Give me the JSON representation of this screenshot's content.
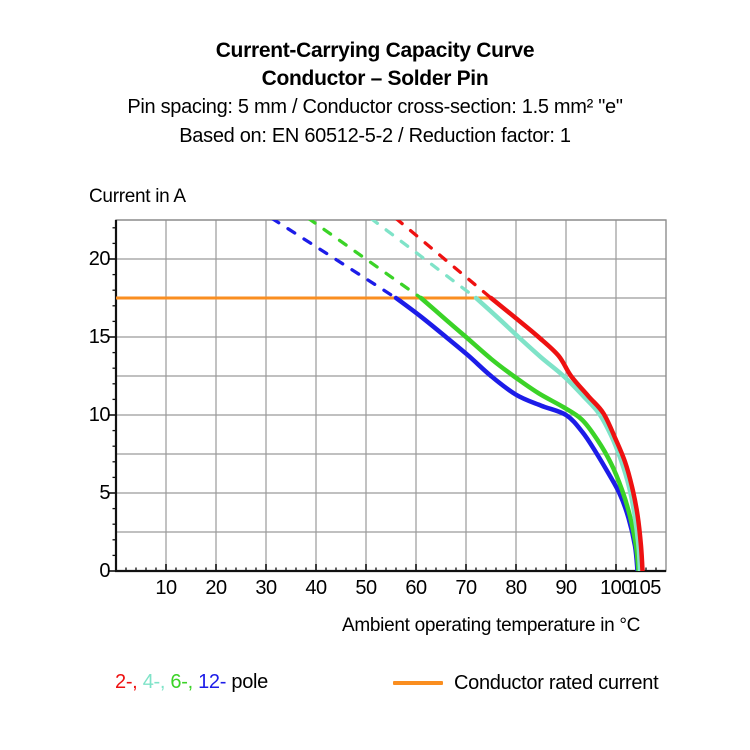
{
  "header": {
    "title": "Current-Carrying Capacity Curve",
    "subtitle": "Conductor – Solder Pin",
    "spec": "Pin spacing: 5 mm / Conductor cross-section: 1.5 mm² \"e\"",
    "basis": "Based on: EN 60512-5-2 / Reduction factor: 1"
  },
  "chart_data": {
    "type": "line",
    "title": "Current-Carrying Capacity Curve — Conductor – Solder Pin",
    "xlabel": "Ambient operating temperature in °C",
    "ylabel": "Current in A",
    "xlim": [
      0,
      110
    ],
    "ylim": [
      0,
      22.5
    ],
    "grid": {
      "x_interval": 10,
      "y_interval": 2.5,
      "x_lines": [
        10,
        20,
        30,
        40,
        50,
        60,
        70,
        80,
        90,
        100
      ],
      "y_lines": [
        2.5,
        5,
        7.5,
        10,
        12.5,
        15,
        17.5,
        20,
        22.5
      ]
    },
    "axes": {
      "x_tick_values": [
        10,
        20,
        30,
        40,
        50,
        60,
        70,
        80,
        90,
        100,
        105
      ],
      "x_tick_labels": [
        "10",
        "20",
        "30",
        "40",
        "50",
        "60",
        "70",
        "80",
        "90",
        "100",
        "105"
      ],
      "x_minor_step": 2,
      "y_tick_values": [
        0,
        5,
        10,
        15,
        20
      ],
      "y_tick_labels": [
        "0",
        "5",
        "10",
        "15",
        "20"
      ],
      "y_minor_step": 1
    },
    "rated_current": {
      "label": "Conductor rated current",
      "value_A": 17.5,
      "t_start": 0,
      "t_end": 75,
      "color": "#fa8e20"
    },
    "series": [
      {
        "name": "12-pole",
        "color": "#1c1ce8",
        "style": "dashed-above-rated",
        "dashed": [
          [
            31.2,
            22.6
          ],
          [
            56,
            17.5
          ]
        ],
        "solid": [
          [
            56,
            17.5
          ],
          [
            61,
            16.3
          ],
          [
            66,
            15
          ],
          [
            70.5,
            13.8
          ],
          [
            75,
            12.5
          ],
          [
            80,
            11.3
          ],
          [
            85,
            10.6
          ],
          [
            90,
            10
          ],
          [
            93.3,
            8.9
          ],
          [
            96,
            7.6
          ],
          [
            98.6,
            6.2
          ],
          [
            100.8,
            4.9
          ],
          [
            102.5,
            3.4
          ],
          [
            103.8,
            1.6
          ],
          [
            104.3,
            0
          ]
        ]
      },
      {
        "name": "6-pole",
        "color": "#3bd327",
        "style": "dashed-above-rated",
        "dashed": [
          [
            38.5,
            22.6
          ],
          [
            61,
            17.5
          ]
        ],
        "solid": [
          [
            61,
            17.5
          ],
          [
            66,
            16.1
          ],
          [
            70,
            15
          ],
          [
            75,
            13.6
          ],
          [
            79.5,
            12.5
          ],
          [
            84.5,
            11.4
          ],
          [
            89.5,
            10.5
          ],
          [
            93.2,
            9.7
          ],
          [
            96.3,
            8.4
          ],
          [
            99,
            6.9
          ],
          [
            101.2,
            5.2
          ],
          [
            102.8,
            3.5
          ],
          [
            104,
            1.6
          ],
          [
            104.5,
            0
          ]
        ]
      },
      {
        "name": "4-pole",
        "color": "#7fe3c8",
        "style": "dashed-above-rated",
        "dashed": [
          [
            51,
            22.6
          ],
          [
            72,
            17.5
          ]
        ],
        "solid": [
          [
            72,
            17.5
          ],
          [
            76.5,
            16.2
          ],
          [
            80.5,
            15
          ],
          [
            85,
            13.7
          ],
          [
            89.5,
            12.5
          ],
          [
            93.5,
            11.2
          ],
          [
            96.6,
            10.1
          ],
          [
            99,
            8.7
          ],
          [
            101,
            7.1
          ],
          [
            102.6,
            5.4
          ],
          [
            103.7,
            3.6
          ],
          [
            104.5,
            1.6
          ],
          [
            104.8,
            0
          ]
        ]
      },
      {
        "name": "2-pole",
        "color": "#ee1111",
        "style": "dashed-above-rated",
        "dashed": [
          [
            56,
            22.6
          ],
          [
            75,
            17.5
          ]
        ],
        "solid": [
          [
            75,
            17.5
          ],
          [
            80,
            16.2
          ],
          [
            84.5,
            15
          ],
          [
            88.5,
            13.8
          ],
          [
            91,
            12.5
          ],
          [
            94.5,
            11.2
          ],
          [
            97.5,
            10.1
          ],
          [
            100,
            8.4
          ],
          [
            101.8,
            7
          ],
          [
            103.2,
            5.4
          ],
          [
            104.3,
            3.6
          ],
          [
            105,
            1.6
          ],
          [
            105.3,
            0
          ]
        ]
      }
    ],
    "colors": {
      "grid": "#9a9a9a",
      "frame": "#8e8e8e",
      "axis": "#111111",
      "text": "#000000"
    },
    "legend_position": "bottom"
  },
  "legend": {
    "poles": [
      {
        "label": "2-",
        "color": "#ee1111"
      },
      {
        "label": "4-",
        "color": "#7fe3c8"
      },
      {
        "label": "6-",
        "color": "#3bd327"
      },
      {
        "label": "12-",
        "color": "#1c1ce8"
      }
    ],
    "separator": ", ",
    "suffix": "pole",
    "rated_label": "Conductor rated current"
  }
}
